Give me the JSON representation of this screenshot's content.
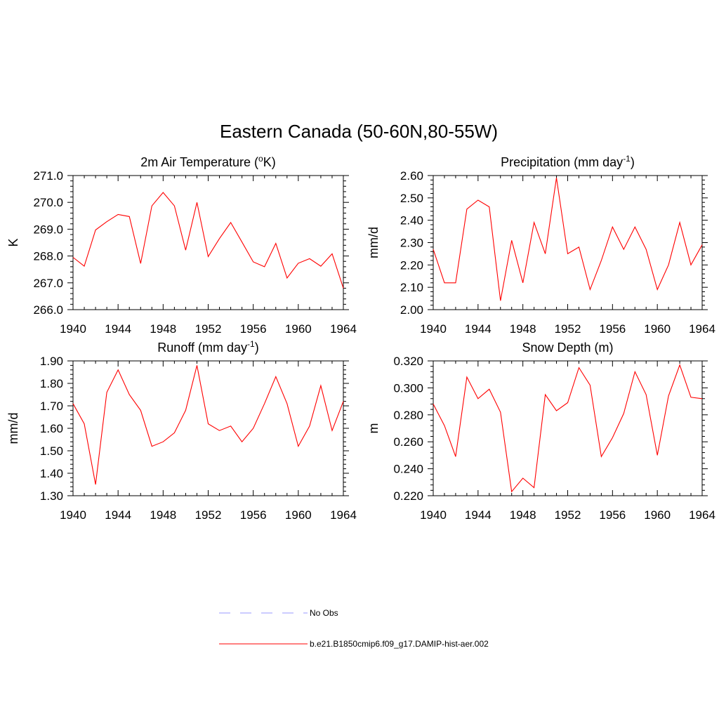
{
  "title": "Eastern Canada (50-60N,80-55W)",
  "chart_data": [
    {
      "type": "line",
      "title": "2m Air Temperature (°K)",
      "ylabel": "K",
      "x": [
        1940,
        1941,
        1942,
        1943,
        1944,
        1945,
        1946,
        1947,
        1948,
        1949,
        1950,
        1951,
        1952,
        1953,
        1954,
        1955,
        1956,
        1957,
        1958,
        1959,
        1960,
        1961,
        1962,
        1963,
        1964
      ],
      "xlim": [
        1940,
        1964
      ],
      "xticks": [
        "1940",
        "1944",
        "1948",
        "1952",
        "1956",
        "1960",
        "1964"
      ],
      "ylim": [
        266.0,
        271.0
      ],
      "yticks": [
        "266.0",
        "267.0",
        "268.0",
        "269.0",
        "270.0",
        "271.0"
      ],
      "series": [
        {
          "name": "b.e21.B1850cmip6.f09_g17.DAMIP-hist-aer.002",
          "color": "#ff0000",
          "values": [
            267.95,
            267.62,
            268.97,
            269.28,
            269.55,
            269.47,
            267.72,
            269.87,
            270.37,
            269.87,
            268.22,
            270.0,
            267.98,
            268.65,
            269.25,
            268.52,
            267.78,
            267.6,
            268.47,
            267.18,
            267.73,
            267.9,
            267.62,
            268.08,
            266.8
          ]
        }
      ]
    },
    {
      "type": "line",
      "title": "Precipitation (mm day-1)",
      "ylabel": "mm/d",
      "x": [
        1940,
        1941,
        1942,
        1943,
        1944,
        1945,
        1946,
        1947,
        1948,
        1949,
        1950,
        1951,
        1952,
        1953,
        1954,
        1955,
        1956,
        1957,
        1958,
        1959,
        1960,
        1961,
        1962,
        1963,
        1964
      ],
      "xlim": [
        1940,
        1964
      ],
      "xticks": [
        "1940",
        "1944",
        "1948",
        "1952",
        "1956",
        "1960",
        "1964"
      ],
      "ylim": [
        2.0,
        2.6
      ],
      "yticks": [
        "2.00",
        "2.10",
        "2.20",
        "2.30",
        "2.40",
        "2.50",
        "2.60"
      ],
      "series": [
        {
          "name": "b.e21.B1850cmip6.f09_g17.DAMIP-hist-aer.002",
          "color": "#ff0000",
          "values": [
            2.27,
            2.12,
            2.12,
            2.45,
            2.49,
            2.46,
            2.04,
            2.31,
            2.12,
            2.39,
            2.25,
            2.59,
            2.25,
            2.28,
            2.09,
            2.22,
            2.37,
            2.27,
            2.37,
            2.27,
            2.09,
            2.2,
            2.39,
            2.2,
            2.29
          ]
        }
      ]
    },
    {
      "type": "line",
      "title": "Runoff (mm day-1)",
      "ylabel": "mm/d",
      "x": [
        1940,
        1941,
        1942,
        1943,
        1944,
        1945,
        1946,
        1947,
        1948,
        1949,
        1950,
        1951,
        1952,
        1953,
        1954,
        1955,
        1956,
        1957,
        1958,
        1959,
        1960,
        1961,
        1962,
        1963,
        1964
      ],
      "xlim": [
        1940,
        1964
      ],
      "xticks": [
        "1940",
        "1944",
        "1948",
        "1952",
        "1956",
        "1960",
        "1964"
      ],
      "ylim": [
        1.3,
        1.9
      ],
      "yticks": [
        "1.30",
        "1.40",
        "1.50",
        "1.60",
        "1.70",
        "1.80",
        "1.90"
      ],
      "series": [
        {
          "name": "b.e21.B1850cmip6.f09_g17.DAMIP-hist-aer.002",
          "color": "#ff0000",
          "values": [
            1.71,
            1.62,
            1.35,
            1.76,
            1.86,
            1.75,
            1.68,
            1.52,
            1.54,
            1.58,
            1.68,
            1.88,
            1.62,
            1.59,
            1.61,
            1.54,
            1.6,
            1.71,
            1.83,
            1.71,
            1.52,
            1.61,
            1.79,
            1.59,
            1.72
          ]
        }
      ]
    },
    {
      "type": "line",
      "title": "Snow Depth (m)",
      "ylabel": "m",
      "x": [
        1940,
        1941,
        1942,
        1943,
        1944,
        1945,
        1946,
        1947,
        1948,
        1949,
        1950,
        1951,
        1952,
        1953,
        1954,
        1955,
        1956,
        1957,
        1958,
        1959,
        1960,
        1961,
        1962,
        1963,
        1964
      ],
      "xlim": [
        1940,
        1964
      ],
      "xticks": [
        "1940",
        "1944",
        "1948",
        "1952",
        "1956",
        "1960",
        "1964"
      ],
      "ylim": [
        0.22,
        0.32
      ],
      "yticks": [
        "0.220",
        "0.240",
        "0.260",
        "0.280",
        "0.300",
        "0.320"
      ],
      "series": [
        {
          "name": "b.e21.B1850cmip6.f09_g17.DAMIP-hist-aer.002",
          "color": "#ff0000",
          "values": [
            0.288,
            0.272,
            0.249,
            0.308,
            0.292,
            0.299,
            0.282,
            0.223,
            0.233,
            0.226,
            0.295,
            0.283,
            0.289,
            0.315,
            0.302,
            0.249,
            0.263,
            0.281,
            0.312,
            0.295,
            0.25,
            0.294,
            0.317,
            0.293,
            0.292
          ]
        }
      ]
    }
  ],
  "legend": [
    {
      "label": "No Obs",
      "color": "#9999ff",
      "style": "dashed"
    },
    {
      "label": "b.e21.B1850cmip6.f09_g17.DAMIP-hist-aer.002",
      "color": "#ff0000",
      "style": "solid"
    }
  ]
}
